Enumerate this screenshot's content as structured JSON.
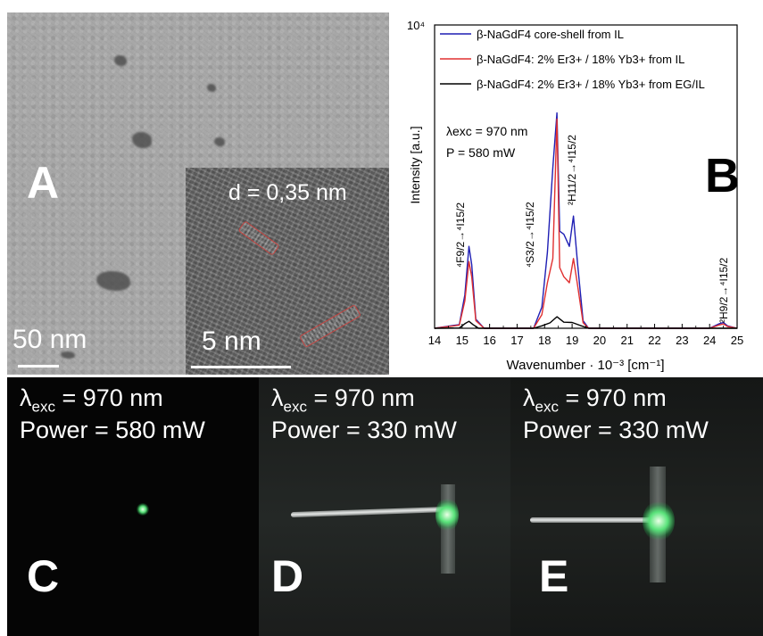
{
  "panel_a": {
    "letter": "A",
    "scalebar_main": "50 nm",
    "inset": {
      "d_spacing": "d = 0,35 nm",
      "scalebar": "5 nm"
    }
  },
  "chart_data": {
    "type": "line",
    "panel_letter": "B",
    "xlabel": "Wavenumber · 10⁻³ [cm⁻¹]",
    "ylabel": "Intensity [a.u.]",
    "xlim": [
      14,
      25
    ],
    "x_ticks": [
      "14",
      "15",
      "16",
      "17",
      "18",
      "19",
      "20",
      "21",
      "22",
      "23",
      "24",
      "25"
    ],
    "ylim": [
      0,
      10000
    ],
    "y_top_label": "10⁴",
    "legend_position": "top-right",
    "excitation": {
      "lambda": "λexc = 970 nm",
      "power": "P = 580 mW"
    },
    "transitions": [
      "⁴F9/2→⁴I15/2",
      "⁴S3/2→⁴I15/2",
      "²H11/2→⁴I15/2",
      "²H9/2→⁴I15/2"
    ],
    "series": [
      {
        "name": "β-NaGdF4 core-shell from IL",
        "color": "#1f1fb4",
        "x": [
          14.0,
          14.9,
          15.1,
          15.25,
          15.35,
          15.5,
          15.8,
          17.6,
          17.9,
          18.1,
          18.3,
          18.45,
          18.55,
          18.7,
          18.9,
          19.05,
          19.2,
          19.4,
          19.6,
          24.0,
          24.35,
          24.5,
          24.65,
          25.0
        ],
        "y": [
          0,
          120,
          1100,
          2700,
          2100,
          300,
          0,
          0,
          700,
          2500,
          5300,
          7100,
          3200,
          3100,
          2700,
          3700,
          2100,
          250,
          0,
          0,
          150,
          190,
          80,
          0
        ]
      },
      {
        "name": "β-NaGdF4: 2% Er3+ / 18% Yb3+ from IL",
        "color": "#e03030",
        "x": [
          14.0,
          14.9,
          15.1,
          15.25,
          15.35,
          15.5,
          15.8,
          17.6,
          17.9,
          18.1,
          18.3,
          18.45,
          18.55,
          18.7,
          18.9,
          19.05,
          19.2,
          19.4,
          19.6,
          24.0,
          24.35,
          24.5,
          24.65,
          25.0
        ],
        "y": [
          0,
          100,
          900,
          2200,
          1700,
          250,
          0,
          0,
          450,
          1500,
          2300,
          6900,
          2000,
          1700,
          1500,
          2300,
          1400,
          180,
          0,
          0,
          110,
          140,
          60,
          0
        ]
      },
      {
        "name": "β-NaGdF4: 2% Er3+ / 18% Yb3+ from EG/IL",
        "color": "#000000",
        "x": [
          14.0,
          14.9,
          15.1,
          15.25,
          15.4,
          15.6,
          17.6,
          17.9,
          18.2,
          18.45,
          18.7,
          19.0,
          19.3,
          19.6,
          25.0
        ],
        "y": [
          0,
          10,
          150,
          230,
          120,
          0,
          0,
          80,
          180,
          380,
          200,
          190,
          90,
          0,
          0
        ]
      }
    ]
  },
  "photos": [
    {
      "letter": "C",
      "lambda_prefix": "λ",
      "lambda_sub": "exc",
      "lambda_value": " = 970 nm",
      "power": "Power = 580 mW"
    },
    {
      "letter": "D",
      "lambda_prefix": "λ",
      "lambda_sub": "exc",
      "lambda_value": " = 970 nm",
      "power": "Power = 330 mW"
    },
    {
      "letter": "E",
      "lambda_prefix": "λ",
      "lambda_sub": "exc",
      "lambda_value": " = 970 nm",
      "power": "Power = 330 mW"
    }
  ]
}
